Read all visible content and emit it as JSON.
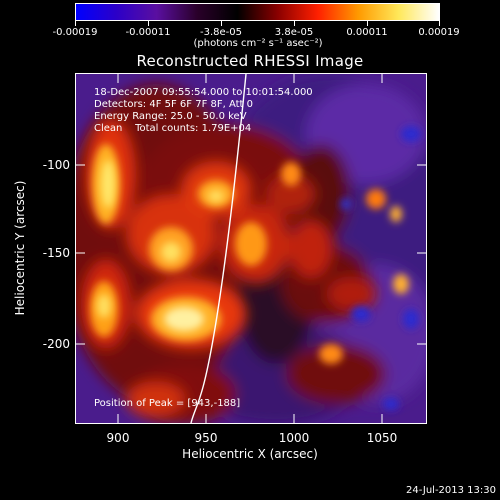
{
  "colorbar": {
    "tick_labels": [
      "-0.00019",
      "-0.00011",
      "-3.8e-05",
      "3.8e-05",
      "0.00011",
      "0.00019"
    ],
    "units": "(photons cm⁻² s⁻¹ asec⁻²)",
    "colormap": [
      "#0000ff",
      "#2c00c8",
      "#5a0fa0",
      "#2a002a",
      "#000000",
      "#8a0000",
      "#ff2000",
      "#ff9a00",
      "#ffe85a",
      "#ffffff"
    ]
  },
  "title": "Reconstructed RHESSI Image",
  "annotations": {
    "line1": "18-Dec-2007 09:55:54.000 to 10:01:54.000",
    "line2": "Detectors: 4F 5F 6F 7F 8F, Att 0",
    "line3": "Energy Range: 25.0 - 50.0 keV",
    "line4": "Clean    Total counts: 1.79E+04",
    "peak": "Position of Peak = [943,-188]"
  },
  "axes": {
    "xlabel": "Heliocentric X (arcsec)",
    "ylabel": "Heliocentric Y (arcsec)",
    "xticks": [
      "900",
      "950",
      "1000",
      "1050"
    ],
    "yticks": [
      "-100",
      "-150",
      "-200"
    ]
  },
  "footer": "24-Jul-2013 13:30"
}
